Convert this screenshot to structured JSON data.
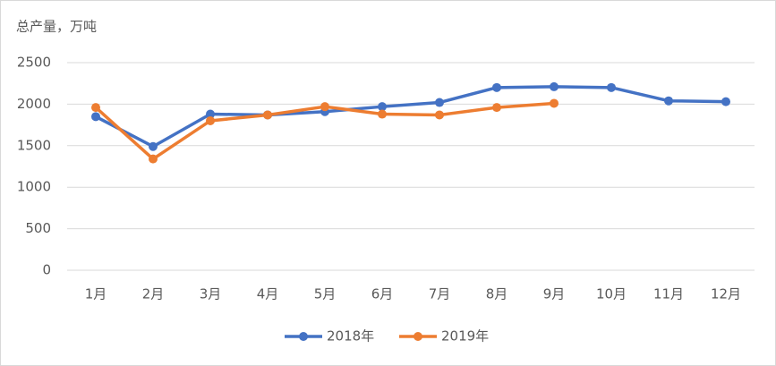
{
  "chart_data": {
    "type": "line",
    "y_axis_label": "总产量，万吨",
    "categories": [
      "1月",
      "2月",
      "3月",
      "4月",
      "5月",
      "6月",
      "7月",
      "8月",
      "9月",
      "10月",
      "11月",
      "12月"
    ],
    "series": [
      {
        "name": "2018年",
        "color": "#4472c4",
        "values": [
          1850,
          1490,
          1880,
          1870,
          1910,
          1970,
          2020,
          2200,
          2210,
          2200,
          2040,
          2030
        ]
      },
      {
        "name": "2019年",
        "color": "#ed7d31",
        "values": [
          1960,
          1340,
          1800,
          1870,
          1970,
          1880,
          1870,
          1960,
          2010,
          null,
          null,
          null
        ]
      }
    ],
    "ylim": [
      0,
      2500
    ],
    "yticks": [
      0,
      500,
      1000,
      1500,
      2000,
      2500
    ],
    "grid": true,
    "legend": "bottom"
  }
}
